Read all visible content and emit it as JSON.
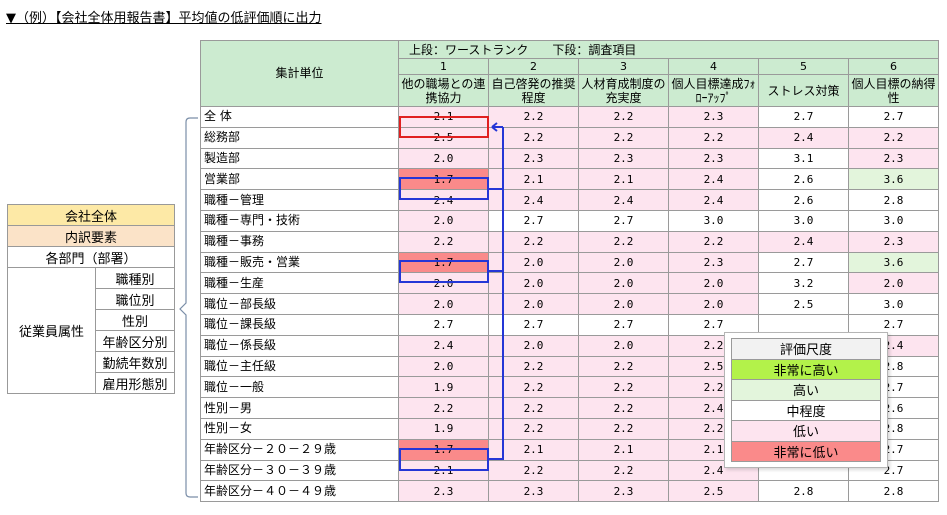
{
  "heading": "▼（例）【会社全体用報告書】平均値の低評価順に出力",
  "header": {
    "unit_label": "集計単位",
    "top_line": "上段：ワーストランク　　下段：調査項目",
    "ranks": [
      "1",
      "2",
      "3",
      "4",
      "5",
      "6"
    ],
    "items": [
      "他の職場との連携協力",
      "自己啓発の推奨程度",
      "人材育成制度の充実度",
      "個人目標達成ﾌｫﾛｰｱｯﾌﾟ",
      "ストレス対策",
      "個人目標の納得性"
    ]
  },
  "rows": [
    {
      "label": "全 体",
      "values": [
        "2.1",
        "2.2",
        "2.2",
        "2.3",
        "2.7",
        "2.7"
      ],
      "levels": [
        "low",
        "low",
        "low",
        "low",
        "mid",
        "mid"
      ]
    },
    {
      "label": "総務部",
      "values": [
        "2.5",
        "2.2",
        "2.2",
        "2.2",
        "2.4",
        "2.2"
      ],
      "levels": [
        "low",
        "low",
        "low",
        "low",
        "low",
        "low"
      ]
    },
    {
      "label": "製造部",
      "values": [
        "2.0",
        "2.3",
        "2.3",
        "2.3",
        "3.1",
        "2.3"
      ],
      "levels": [
        "low",
        "low",
        "low",
        "low",
        "mid",
        "low"
      ]
    },
    {
      "label": "営業部",
      "values": [
        "1.7",
        "2.1",
        "2.1",
        "2.4",
        "2.6",
        "3.6"
      ],
      "levels": [
        "vlow",
        "low",
        "low",
        "low",
        "mid",
        "high"
      ]
    },
    {
      "label": "職種－管理",
      "values": [
        "2.4",
        "2.4",
        "2.4",
        "2.4",
        "2.6",
        "2.8"
      ],
      "levels": [
        "low",
        "low",
        "low",
        "low",
        "mid",
        "mid"
      ]
    },
    {
      "label": "職種－専門・技術",
      "values": [
        "2.0",
        "2.7",
        "2.7",
        "3.0",
        "3.0",
        "3.0"
      ],
      "levels": [
        "low",
        "mid",
        "mid",
        "mid",
        "mid",
        "mid"
      ]
    },
    {
      "label": "職種－事務",
      "values": [
        "2.2",
        "2.2",
        "2.2",
        "2.2",
        "2.4",
        "2.3"
      ],
      "levels": [
        "low",
        "low",
        "low",
        "low",
        "low",
        "low"
      ]
    },
    {
      "label": "職種－販売・営業",
      "values": [
        "1.7",
        "2.0",
        "2.0",
        "2.3",
        "2.7",
        "3.6"
      ],
      "levels": [
        "vlow",
        "low",
        "low",
        "low",
        "mid",
        "high"
      ]
    },
    {
      "label": "職種－生産",
      "values": [
        "2.0",
        "2.0",
        "2.0",
        "2.0",
        "3.2",
        "2.0"
      ],
      "levels": [
        "low",
        "low",
        "low",
        "low",
        "mid",
        "low"
      ]
    },
    {
      "label": "職位－部長級",
      "values": [
        "2.0",
        "2.0",
        "2.0",
        "2.0",
        "2.5",
        "3.0"
      ],
      "levels": [
        "low",
        "low",
        "low",
        "low",
        "mid",
        "mid"
      ]
    },
    {
      "label": "職位－課長級",
      "values": [
        "2.7",
        "2.7",
        "2.7",
        "2.7",
        "",
        "2.7"
      ],
      "levels": [
        "mid",
        "mid",
        "mid",
        "mid",
        "mid",
        "mid"
      ]
    },
    {
      "label": "職位－係長級",
      "values": [
        "2.4",
        "2.0",
        "2.0",
        "2.2",
        "",
        "2.4"
      ],
      "levels": [
        "low",
        "low",
        "low",
        "low",
        "low",
        "low"
      ]
    },
    {
      "label": "職位－主任級",
      "values": [
        "2.0",
        "2.2",
        "2.2",
        "2.5",
        "",
        "2.8"
      ],
      "levels": [
        "low",
        "low",
        "low",
        "low",
        "mid",
        "mid"
      ]
    },
    {
      "label": "職位－一般",
      "values": [
        "1.9",
        "2.2",
        "2.2",
        "2.2",
        "",
        "2.7"
      ],
      "levels": [
        "low",
        "low",
        "low",
        "low",
        "low",
        "mid"
      ]
    },
    {
      "label": "性別－男",
      "values": [
        "2.2",
        "2.2",
        "2.2",
        "2.4",
        "",
        "2.6"
      ],
      "levels": [
        "low",
        "low",
        "low",
        "low",
        "mid",
        "mid"
      ]
    },
    {
      "label": "性別－女",
      "values": [
        "1.9",
        "2.2",
        "2.2",
        "2.2",
        "",
        "2.8"
      ],
      "levels": [
        "low",
        "low",
        "low",
        "low",
        "low",
        "mid"
      ]
    },
    {
      "label": "年齢区分－２０－２９歳",
      "values": [
        "1.7",
        "2.1",
        "2.1",
        "2.1",
        "",
        "2.7"
      ],
      "levels": [
        "vlow",
        "low",
        "low",
        "low",
        "low",
        "mid"
      ]
    },
    {
      "label": "年齢区分－３０－３９歳",
      "values": [
        "2.1",
        "2.2",
        "2.2",
        "2.4",
        "",
        "2.7"
      ],
      "levels": [
        "low",
        "low",
        "low",
        "low",
        "mid",
        "mid"
      ]
    },
    {
      "label": "年齢区分－４０－４９歳",
      "values": [
        "2.3",
        "2.3",
        "2.3",
        "2.5",
        "2.8",
        "2.8"
      ],
      "levels": [
        "low",
        "low",
        "low",
        "low",
        "mid",
        "mid"
      ]
    }
  ],
  "left_legend": {
    "company": "会社全体",
    "breakdown": "内訳要素",
    "departments": "各部門（部署）",
    "attributes": "従業員属性",
    "attribute_items": [
      "職種別",
      "職位別",
      "性別",
      "年齢区分別",
      "勤続年数別",
      "雇用形態別"
    ]
  },
  "scale": {
    "title": "評価尺度",
    "levels": [
      {
        "label": "非常に高い",
        "color": "#b3f24a"
      },
      {
        "label": "高い",
        "color": "#e3f5dc"
      },
      {
        "label": "中程度",
        "color": "#ffffff"
      },
      {
        "label": "低い",
        "color": "#fde4ef"
      },
      {
        "label": "非常に低い",
        "color": "#fa8a8a"
      }
    ]
  },
  "colors": {
    "header_bg": "#ccebd0",
    "highlight_red": "#e02020",
    "highlight_blue": "#2436d6"
  }
}
